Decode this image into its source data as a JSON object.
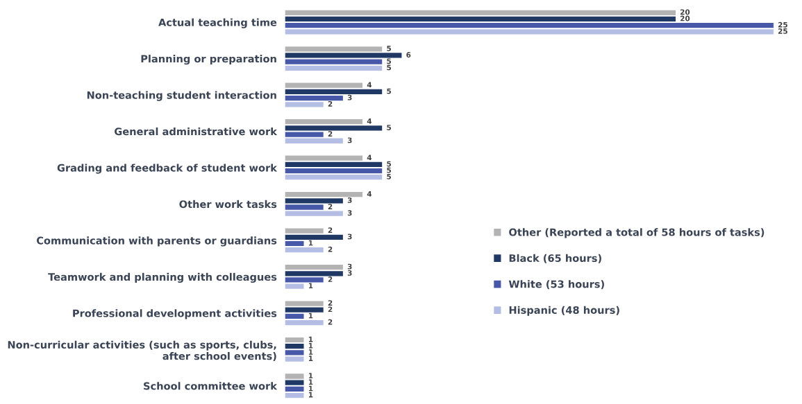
{
  "chart_data": {
    "type": "bar",
    "orientation": "horizontal",
    "categories": [
      "Actual teaching time",
      "Planning or preparation",
      "Non-teaching student interaction",
      "General administrative work",
      "Grading and feedback of student work",
      "Other work tasks",
      "Communication with parents or guardians",
      "Teamwork and planning with colleagues",
      "Professional development activities",
      "Non-curricular activities (such as sports, clubs, after school events)",
      "School committee work"
    ],
    "series": [
      {
        "name": "Other (Reported a total of 58 hours of tasks)",
        "color": "#b3b3b3",
        "values": [
          20,
          5,
          4,
          4,
          4,
          4,
          2,
          3,
          2,
          1,
          1
        ]
      },
      {
        "name": "Black (65 hours)",
        "color": "#1f3864",
        "values": [
          20,
          6,
          5,
          5,
          5,
          3,
          3,
          3,
          2,
          1,
          1
        ]
      },
      {
        "name": "White (53 hours)",
        "color": "#4858a8",
        "values": [
          25,
          5,
          3,
          2,
          5,
          2,
          1,
          2,
          1,
          1,
          1
        ]
      },
      {
        "name": "Hispanic (48 hours)",
        "color": "#b4bde3",
        "values": [
          25,
          5,
          2,
          3,
          5,
          3,
          2,
          1,
          2,
          1,
          1
        ]
      }
    ],
    "data_labels": true,
    "legend": "right",
    "grid": false,
    "tick_labels": "y"
  }
}
